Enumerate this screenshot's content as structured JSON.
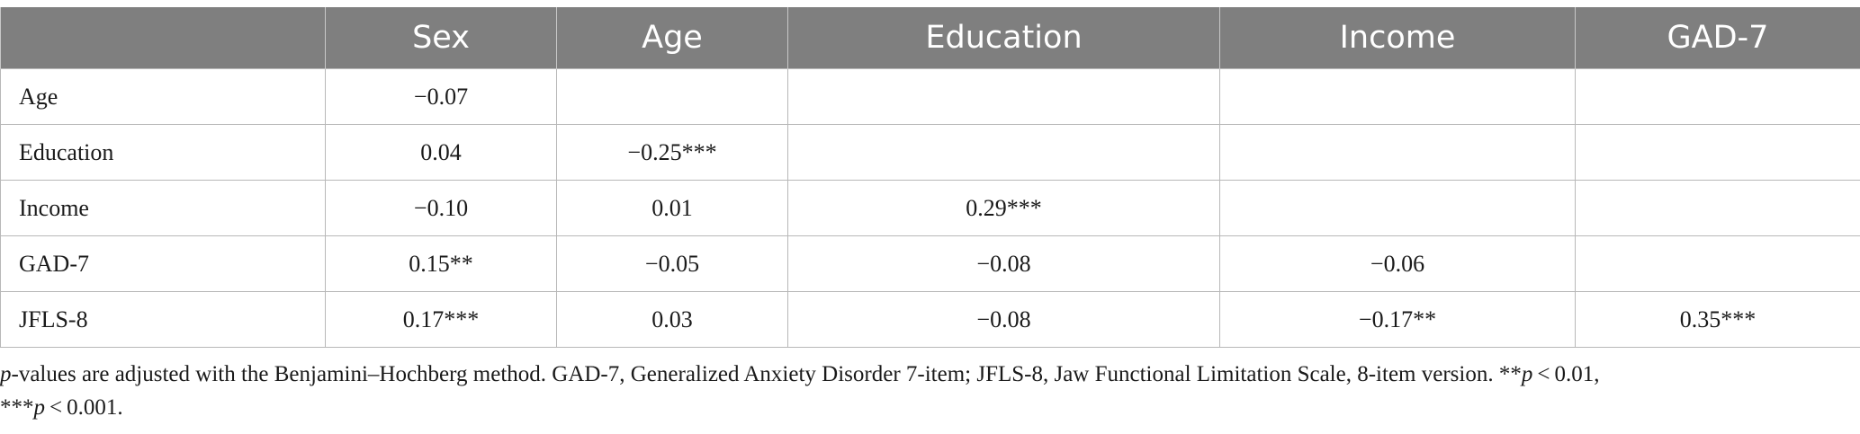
{
  "table": {
    "columns": [
      "",
      "Sex",
      "Age",
      "Education",
      "Income",
      "GAD-7"
    ],
    "rows": [
      {
        "label": "Age",
        "cells": [
          "−0.07",
          "",
          "",
          "",
          ""
        ]
      },
      {
        "label": "Education",
        "cells": [
          "0.04",
          "−0.25***",
          "",
          "",
          ""
        ]
      },
      {
        "label": "Income",
        "cells": [
          "−0.10",
          "0.01",
          "0.29***",
          "",
          ""
        ]
      },
      {
        "label": "GAD-7",
        "cells": [
          "0.15**",
          "−0.05",
          "−0.08",
          "−0.06",
          ""
        ]
      },
      {
        "label": "JFLS-8",
        "cells": [
          "0.17***",
          "0.03",
          "−0.08",
          "−0.17**",
          "0.35***"
        ]
      }
    ]
  },
  "footnote": {
    "p1": "p",
    "t1": "-values are adjusted with the Benjamini–Hochberg method. GAD-7, Generalized Anxiety Disorder 7-item; JFLS-8, Jaw Functional Limitation Scale, 8-item version. **",
    "p2": "p",
    "t2": " < 0.01,",
    "t3": "***",
    "p3": "p",
    "t4": " < 0.001."
  }
}
